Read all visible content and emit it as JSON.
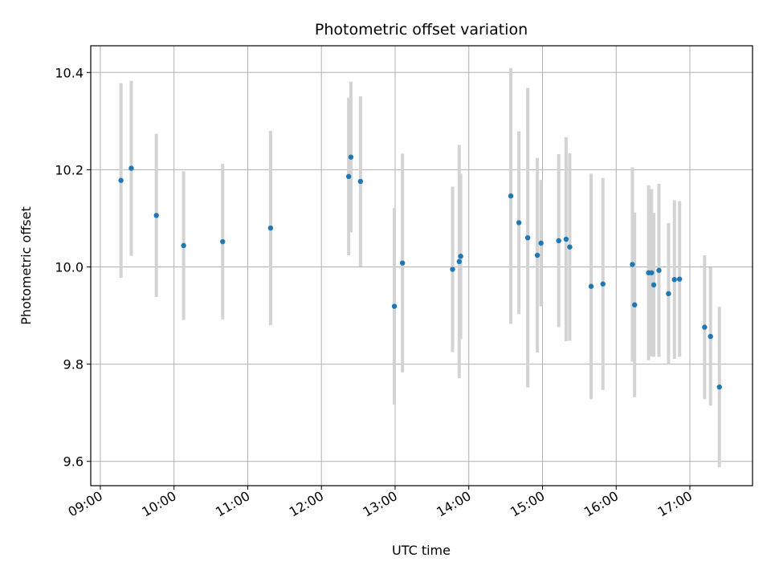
{
  "chart_data": {
    "type": "scatter",
    "title": "Photometric offset variation",
    "xlabel": "UTC time",
    "ylabel": "Photometric offset",
    "grid": true,
    "legend": "none",
    "x_unit": "hours UTC",
    "xlim": [
      8.87,
      17.85
    ],
    "ylim": [
      9.55,
      10.455
    ],
    "xticks": [
      9,
      10,
      11,
      12,
      13,
      14,
      15,
      16,
      17
    ],
    "xtick_labels": [
      "09:00",
      "10:00",
      "11:00",
      "12:00",
      "13:00",
      "14:00",
      "15:00",
      "16:00",
      "17:00"
    ],
    "yticks": [
      9.6,
      9.8,
      10.0,
      10.2,
      10.4
    ],
    "ytick_labels": [
      "9.6",
      "9.8",
      "10.0",
      "10.2",
      "10.4"
    ],
    "colors": {
      "point": "#1f77b4",
      "errorbar": "#d3d3d3",
      "grid": "#b0b0b0"
    },
    "points": [
      {
        "x": 9.28,
        "y": 10.178,
        "err": 0.2
      },
      {
        "x": 9.42,
        "y": 10.203,
        "err": 0.18
      },
      {
        "x": 9.76,
        "y": 10.106,
        "err": 0.168
      },
      {
        "x": 10.13,
        "y": 10.044,
        "err": 0.153
      },
      {
        "x": 10.66,
        "y": 10.052,
        "err": 0.16
      },
      {
        "x": 11.31,
        "y": 10.08,
        "err": 0.2
      },
      {
        "x": 12.37,
        "y": 10.186,
        "err": 0.162
      },
      {
        "x": 12.4,
        "y": 10.226,
        "err": 0.155
      },
      {
        "x": 12.53,
        "y": 10.176,
        "err": 0.175
      },
      {
        "x": 12.99,
        "y": 9.919,
        "err": 0.202
      },
      {
        "x": 13.1,
        "y": 10.008,
        "err": 0.225
      },
      {
        "x": 13.78,
        "y": 9.995,
        "err": 0.17
      },
      {
        "x": 13.87,
        "y": 10.011,
        "err": 0.24
      },
      {
        "x": 13.89,
        "y": 10.022,
        "err": 0.17
      },
      {
        "x": 14.57,
        "y": 10.146,
        "err": 0.263
      },
      {
        "x": 14.68,
        "y": 10.091,
        "err": 0.188
      },
      {
        "x": 14.8,
        "y": 10.06,
        "err": 0.308
      },
      {
        "x": 14.93,
        "y": 10.024,
        "err": 0.2
      },
      {
        "x": 14.98,
        "y": 10.049,
        "err": 0.13
      },
      {
        "x": 15.22,
        "y": 10.054,
        "err": 0.178
      },
      {
        "x": 15.32,
        "y": 10.057,
        "err": 0.21
      },
      {
        "x": 15.37,
        "y": 10.041,
        "err": 0.193
      },
      {
        "x": 15.66,
        "y": 9.96,
        "err": 0.232
      },
      {
        "x": 15.82,
        "y": 9.965,
        "err": 0.218
      },
      {
        "x": 16.22,
        "y": 10.005,
        "err": 0.2
      },
      {
        "x": 16.25,
        "y": 9.922,
        "err": 0.19
      },
      {
        "x": 16.44,
        "y": 9.988,
        "err": 0.18
      },
      {
        "x": 16.48,
        "y": 9.988,
        "err": 0.172
      },
      {
        "x": 16.51,
        "y": 9.963,
        "err": 0.148
      },
      {
        "x": 16.58,
        "y": 9.993,
        "err": 0.178
      },
      {
        "x": 16.71,
        "y": 9.945,
        "err": 0.145
      },
      {
        "x": 16.79,
        "y": 9.974,
        "err": 0.163
      },
      {
        "x": 16.86,
        "y": 9.975,
        "err": 0.16
      },
      {
        "x": 17.2,
        "y": 9.876,
        "err": 0.148
      },
      {
        "x": 17.28,
        "y": 9.857,
        "err": 0.142
      },
      {
        "x": 17.4,
        "y": 9.753,
        "err": 0.165
      }
    ]
  }
}
